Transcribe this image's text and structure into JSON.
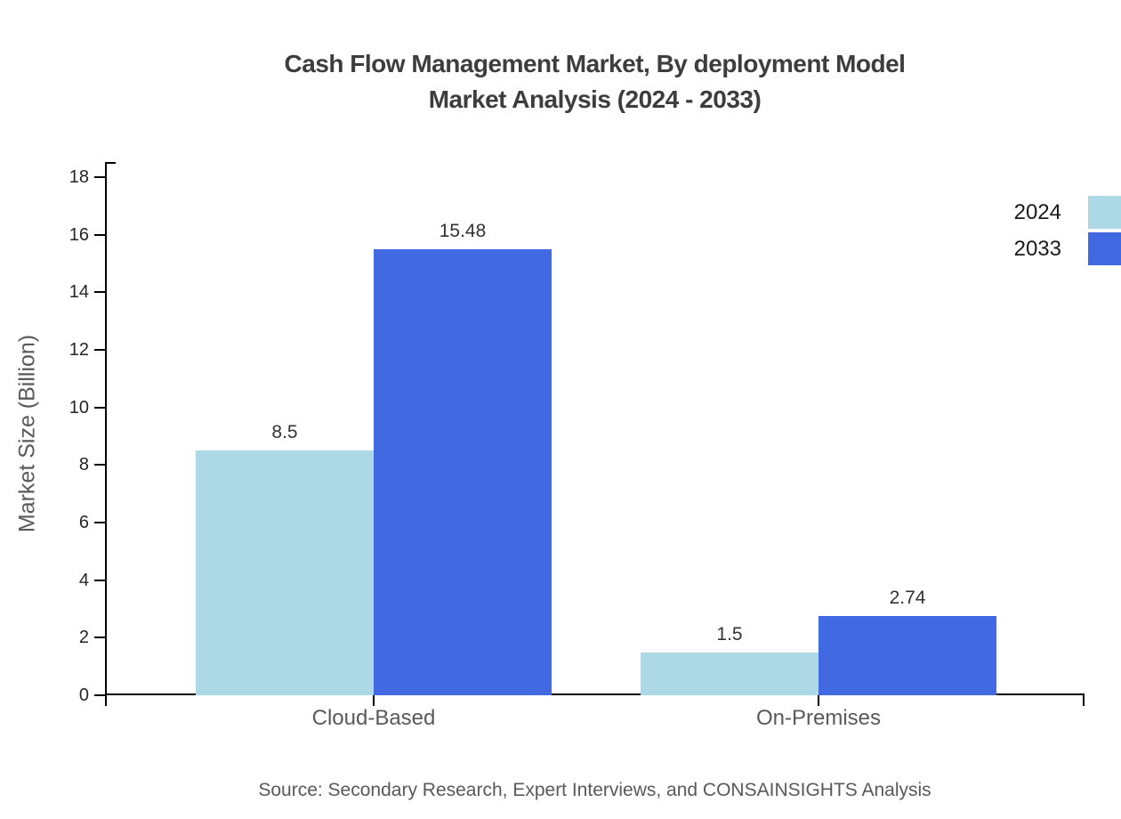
{
  "title": {
    "line1": "Cash Flow Management Market, By deployment Model",
    "line2": "Market Analysis (2024 - 2033)"
  },
  "chart_data": {
    "type": "bar",
    "categories": [
      "Cloud-Based",
      "On-Premises"
    ],
    "series": [
      {
        "name": "2024",
        "color": "#ADD8E6",
        "values": [
          8.5,
          1.5
        ]
      },
      {
        "name": "2033",
        "color": "#4169E1",
        "values": [
          15.48,
          2.74
        ]
      }
    ],
    "value_labels": {
      "cloud_2024": "8.5",
      "cloud_2033": "15.48",
      "onprem_2024": "1.5",
      "onprem_2033": "2.74"
    },
    "title": "Cash Flow Management Market, By deployment Model Market Analysis (2024 - 2033)",
    "xlabel": "",
    "ylabel": "Market Size (Billion)",
    "ylim": [
      0,
      18
    ],
    "ytick_step": 2,
    "ytick_labels": [
      "0",
      "2",
      "4",
      "6",
      "8",
      "10",
      "12",
      "14",
      "16",
      "18"
    ],
    "grid": false,
    "legend_position": "upper-right-edge"
  },
  "source": "Source: Secondary Research, Expert Interviews, and CONSAINSIGHTS Analysis",
  "colors": {
    "series_2024": "#ADD8E6",
    "series_2033": "#4169E1",
    "axis": "#000000",
    "title_text": "#3d3d3d",
    "muted_text": "#595959",
    "tick_text": "#262626"
  }
}
